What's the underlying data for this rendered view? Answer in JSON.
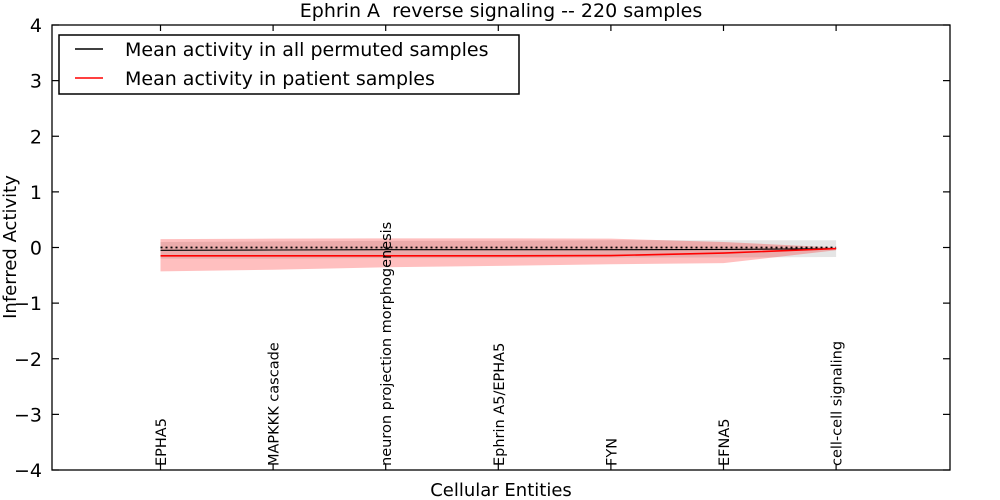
{
  "title": "Ephrin A  reverse signaling -- 220 samples",
  "axes": {
    "xlabel": "Cellular Entities",
    "ylabel": "Inferred Activity",
    "ytick_labels": [
      "4",
      "3",
      "2",
      "1",
      "0",
      "−1",
      "−2",
      "−3",
      "−4"
    ]
  },
  "legend": {
    "position": "upper left",
    "items": [
      {
        "label": "Mean activity in all permuted samples",
        "color": "#000000"
      },
      {
        "label": "Mean activity in patient samples",
        "color": "#ff0000"
      }
    ]
  },
  "colors": {
    "permuted_line": "#000000",
    "permuted_band": "rgba(0,0,0,0.10)",
    "patient_line": "#ff0000",
    "patient_band": "rgba(255,0,0,0.25)",
    "frame": "#000000",
    "background": "#ffffff"
  },
  "chart_data": {
    "type": "line",
    "title": "Ephrin A  reverse signaling -- 220 samples",
    "xlabel": "Cellular Entities",
    "ylabel": "Inferred Activity",
    "ylim": [
      -4,
      4
    ],
    "yticks": [
      4,
      3,
      2,
      1,
      0,
      -1,
      -2,
      -3,
      -4
    ],
    "xtick_rotation": 90,
    "grid": false,
    "legend_position": "upper left",
    "categories": [
      "EPHA5",
      "MAPKKK cascade",
      "neuron projection morphogenesis",
      "Ephrin A5/EPHA5",
      "FYN",
      "EFNA5",
      "cell-cell signaling"
    ],
    "zero_line": {
      "y": 0,
      "style": "dotted",
      "color": "#000000"
    },
    "series": [
      {
        "name": "Mean activity in all permuted samples",
        "color": "#000000",
        "values": [
          -0.05,
          -0.045,
          -0.04,
          -0.04,
          -0.04,
          -0.035,
          -0.02
        ],
        "band_upper": [
          0.1,
          0.11,
          0.12,
          0.12,
          0.13,
          0.13,
          0.13
        ],
        "band_lower": [
          -0.2,
          -0.2,
          -0.19,
          -0.19,
          -0.18,
          -0.18,
          -0.17
        ],
        "band_color": "rgba(0,0,0,0.10)"
      },
      {
        "name": "Mean activity in patient samples",
        "color": "#ff0000",
        "values": [
          -0.15,
          -0.15,
          -0.15,
          -0.15,
          -0.145,
          -0.1,
          -0.02
        ],
        "band_upper": [
          0.15,
          0.16,
          0.165,
          0.165,
          0.16,
          0.1,
          0.0
        ],
        "band_lower": [
          -0.43,
          -0.4,
          -0.355,
          -0.33,
          -0.3,
          -0.28,
          -0.05
        ],
        "band_color": "rgba(255,0,0,0.25)"
      }
    ]
  }
}
